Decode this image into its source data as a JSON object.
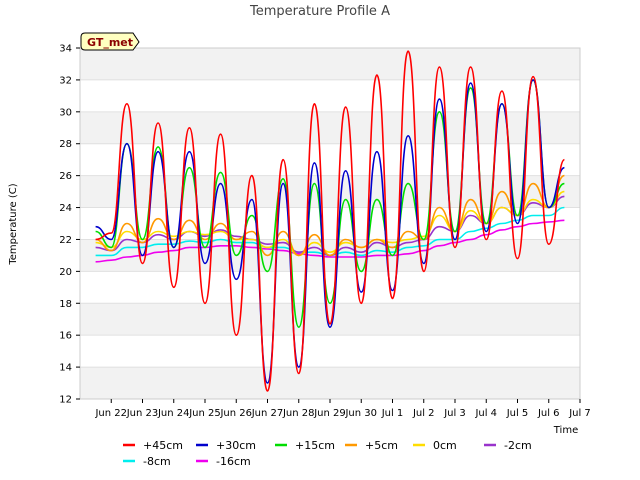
{
  "chart_data": {
    "type": "line",
    "title": "Temperature Profile A",
    "xlabel": "Time",
    "ylabel": "Temperature (C)",
    "badge": "GT_met",
    "ylim": [
      12,
      34
    ],
    "xlim": [
      "2024-06-21",
      "2024-07-07"
    ],
    "grid": "horizontal bands",
    "legend_position": "bottom",
    "x_tick_labels": [
      "Jun 22",
      "Jun 23",
      "Jun 24",
      "Jun 25",
      "Jun 26",
      "Jun 27",
      "Jun 28",
      "Jun 29",
      "Jun 30",
      "Jul 1",
      "Jul 2",
      "Jul 3",
      "Jul 4",
      "Jul 5",
      "Jul 6",
      "Jul 7"
    ],
    "y_tick_labels": [
      "12",
      "14",
      "16",
      "18",
      "20",
      "22",
      "24",
      "26",
      "28",
      "30",
      "32",
      "34"
    ],
    "x_dates": [
      "2024-06-21T12:00",
      "2024-06-22T00:00",
      "2024-06-22T12:00",
      "2024-06-23T00:00",
      "2024-06-23T12:00",
      "2024-06-24T00:00",
      "2024-06-24T12:00",
      "2024-06-25T00:00",
      "2024-06-25T12:00",
      "2024-06-26T00:00",
      "2024-06-26T12:00",
      "2024-06-27T00:00",
      "2024-06-27T12:00",
      "2024-06-28T00:00",
      "2024-06-28T12:00",
      "2024-06-29T00:00",
      "2024-06-29T12:00",
      "2024-06-30T00:00",
      "2024-06-30T12:00",
      "2024-07-01T00:00",
      "2024-07-01T12:00",
      "2024-07-02T00:00",
      "2024-07-02T12:00",
      "2024-07-03T00:00",
      "2024-07-03T12:00",
      "2024-07-04T00:00",
      "2024-07-04T12:00",
      "2024-07-05T00:00",
      "2024-07-05T12:00",
      "2024-07-06T00:00",
      "2024-07-06T12:00"
    ],
    "series": [
      {
        "name": "+45cm",
        "color": "#ff0000",
        "values": [
          22.0,
          22.4,
          30.5,
          20.5,
          29.3,
          19.0,
          29.0,
          18.0,
          28.6,
          16.0,
          26.0,
          12.5,
          27.0,
          13.6,
          30.5,
          16.7,
          30.3,
          18.0,
          32.3,
          18.3,
          33.8,
          20.0,
          32.8,
          21.5,
          32.8,
          22.0,
          31.3,
          20.8,
          32.2,
          21.7,
          27.0
        ]
      },
      {
        "name": "+30cm",
        "color": "#0000cc",
        "values": [
          22.8,
          22.0,
          28.0,
          21.0,
          27.5,
          21.5,
          27.5,
          20.5,
          25.5,
          19.5,
          24.5,
          13.0,
          25.5,
          14.0,
          26.8,
          16.5,
          26.3,
          18.7,
          27.5,
          18.8,
          28.5,
          20.5,
          30.8,
          22.0,
          31.8,
          22.5,
          30.5,
          23.0,
          32.0,
          24.0,
          26.5
        ]
      },
      {
        "name": "+15cm",
        "color": "#00dd00",
        "values": [
          22.5,
          21.5,
          28.0,
          22.0,
          27.8,
          21.5,
          26.5,
          21.5,
          26.2,
          21.0,
          23.5,
          20.0,
          25.8,
          16.5,
          25.5,
          18.0,
          24.5,
          20.0,
          24.5,
          21.0,
          25.5,
          22.0,
          30.0,
          22.5,
          31.5,
          23.0,
          30.5,
          23.5,
          32.0,
          24.0,
          25.5
        ]
      },
      {
        "name": "+5cm",
        "color": "#ff9900",
        "values": [
          22.0,
          21.3,
          23.0,
          21.8,
          23.3,
          22.0,
          23.2,
          22.0,
          23.0,
          22.0,
          22.5,
          21.0,
          22.5,
          21.0,
          22.3,
          21.0,
          22.0,
          21.5,
          22.0,
          21.5,
          22.5,
          22.0,
          24.0,
          22.5,
          24.5,
          23.0,
          25.0,
          23.5,
          25.5,
          24.0,
          26.0
        ]
      },
      {
        "name": "0cm",
        "color": "#ffdd00",
        "values": [
          21.8,
          21.5,
          22.5,
          22.0,
          22.5,
          22.2,
          22.5,
          22.3,
          22.5,
          22.0,
          22.0,
          21.5,
          22.0,
          21.0,
          21.8,
          21.2,
          21.8,
          21.5,
          22.0,
          21.8,
          22.0,
          22.2,
          23.5,
          22.5,
          23.8,
          23.0,
          24.0,
          23.5,
          24.5,
          24.0,
          25.0
        ]
      },
      {
        "name": "-2cm",
        "color": "#9933cc",
        "values": [
          21.5,
          21.3,
          22.0,
          21.8,
          22.3,
          22.0,
          22.5,
          22.2,
          22.6,
          22.2,
          22.0,
          21.7,
          21.8,
          21.2,
          21.5,
          21.0,
          21.5,
          21.2,
          21.8,
          21.5,
          21.8,
          22.0,
          22.8,
          22.5,
          23.5,
          23.0,
          24.0,
          23.5,
          24.3,
          24.0,
          24.7
        ]
      },
      {
        "name": "-8cm",
        "color": "#00eeee",
        "values": [
          21.0,
          21.0,
          21.5,
          21.5,
          21.7,
          21.7,
          21.9,
          21.8,
          22.0,
          21.8,
          21.8,
          21.5,
          21.5,
          21.2,
          21.2,
          21.0,
          21.2,
          21.0,
          21.3,
          21.2,
          21.5,
          21.6,
          22.0,
          22.0,
          22.5,
          22.7,
          23.0,
          23.2,
          23.5,
          23.5,
          24.0
        ]
      },
      {
        "name": "-16cm",
        "color": "#ee00ee",
        "values": [
          20.6,
          20.7,
          20.9,
          21.0,
          21.2,
          21.3,
          21.5,
          21.5,
          21.6,
          21.6,
          21.5,
          21.4,
          21.3,
          21.1,
          21.0,
          20.9,
          20.9,
          20.9,
          21.0,
          21.0,
          21.1,
          21.3,
          21.6,
          21.8,
          22.0,
          22.3,
          22.6,
          22.8,
          23.0,
          23.1,
          23.2
        ]
      }
    ]
  }
}
